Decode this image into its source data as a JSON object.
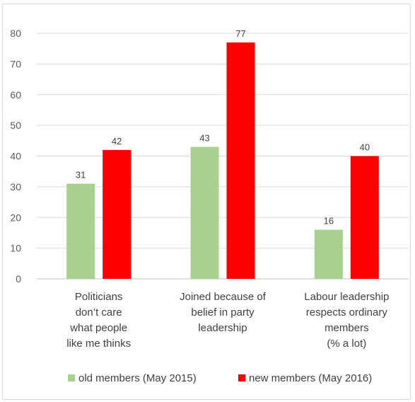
{
  "chart_data": {
    "type": "bar",
    "title": "",
    "xlabel": "",
    "ylabel": "",
    "ylim": [
      0,
      80
    ],
    "yticks": [
      0,
      10,
      20,
      30,
      40,
      50,
      60,
      70,
      80
    ],
    "grid": true,
    "legend_position": "bottom",
    "categories": [
      [
        "Politicians",
        "don’t care",
        "what people",
        "like me thinks"
      ],
      [
        "Joined because of",
        "belief in party",
        "leadership"
      ],
      [
        "Labour leadership",
        "respects ordinary",
        "members",
        "(% a lot)"
      ]
    ],
    "series": [
      {
        "name": "old members (May 2015)",
        "color": "#a9d18e",
        "values": [
          31,
          43,
          16
        ]
      },
      {
        "name": "new members (May 2016)",
        "color": "#ff0000",
        "values": [
          42,
          77,
          40
        ]
      }
    ],
    "data_labels": true
  }
}
